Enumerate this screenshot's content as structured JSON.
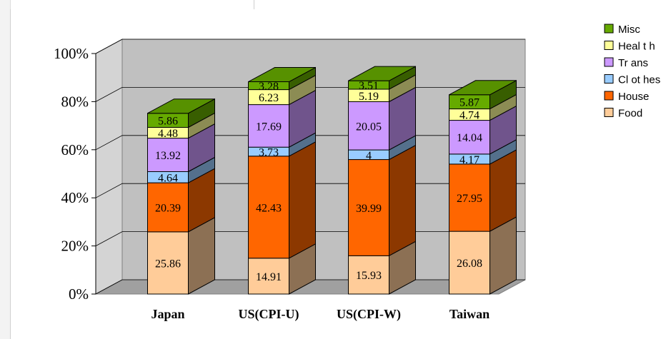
{
  "chart_data": {
    "type": "bar",
    "stacked": true,
    "three_d": true,
    "title": "",
    "xlabel": "",
    "ylabel": "",
    "categories": [
      "Japan",
      "US(CPI-U)",
      "US(CPI-W)",
      "Taiwan"
    ],
    "series": [
      {
        "name": "Food",
        "values": [
          25.86,
          14.91,
          15.93,
          26.08
        ],
        "color": "#ffcc99"
      },
      {
        "name": "House",
        "values": [
          20.39,
          42.43,
          39.99,
          27.95
        ],
        "color": "#ff6600"
      },
      {
        "name": "Clothes",
        "values": [
          4.64,
          3.73,
          4,
          4.17
        ],
        "color": "#99ccff"
      },
      {
        "name": "Trans",
        "values": [
          13.92,
          17.69,
          20.05,
          14.04
        ],
        "color": "#cc99ff"
      },
      {
        "name": "Health",
        "values": [
          4.48,
          6.23,
          5.19,
          4.74
        ],
        "color": "#ffff99"
      },
      {
        "name": "Misc",
        "values": [
          5.86,
          3.28,
          3.51,
          5.87
        ],
        "color": "#66aa00"
      }
    ],
    "value_labels": [
      [
        "25.86",
        "14.91",
        "15.93",
        "26.08"
      ],
      [
        "20.39",
        "42.43",
        "39.99",
        "27.95"
      ],
      [
        "4.64",
        "3.73",
        "4",
        "4.17"
      ],
      [
        "13.92",
        "17.69",
        "20.05",
        "14.04"
      ],
      [
        "4.48",
        "6.23",
        "5.19",
        "4.74"
      ],
      [
        "5.86",
        "3.28",
        "3.51",
        "5.87"
      ]
    ],
    "y_ticks": [
      "0%",
      "20%",
      "40%",
      "60%",
      "80%",
      "100%"
    ],
    "ylim": [
      0,
      100
    ],
    "grid": true,
    "legend": {
      "position": "top-right",
      "labels": [
        "Misc",
        "Heal t h",
        "Tr ans",
        "Cl ot hes",
        "House",
        "Food"
      ]
    },
    "colors": {
      "wall": "#c0c0c0",
      "floor": "#a0a0a0",
      "grid": "#000000"
    }
  }
}
